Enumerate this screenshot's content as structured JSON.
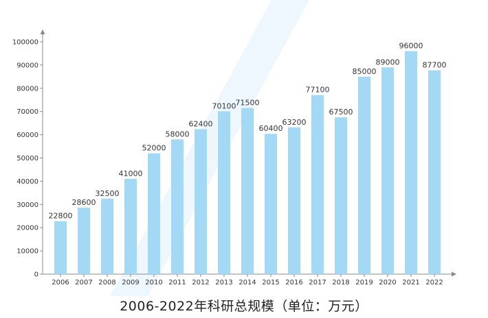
{
  "chart_data": {
    "type": "bar",
    "title": "2006-2022年科研总规模（单位：万元）",
    "categories": [
      "2006",
      "2007",
      "2008",
      "2009",
      "2010",
      "2011",
      "2012",
      "2013",
      "2014",
      "2015",
      "2016",
      "2017",
      "2018",
      "2019",
      "2020",
      "2021",
      "2022"
    ],
    "values": [
      22800,
      28600,
      32500,
      41000,
      52000,
      58000,
      62400,
      70100,
      71500,
      60400,
      63200,
      77100,
      67500,
      85000,
      89000,
      96000,
      87700
    ],
    "ylim": [
      0,
      100000
    ],
    "yticks": [
      0,
      10000,
      20000,
      30000,
      40000,
      50000,
      60000,
      70000,
      80000,
      90000,
      100000
    ],
    "xlabel": "",
    "ylabel": "",
    "grid": false,
    "bar_color": "#a3d9f5",
    "axis_color": "#888888"
  }
}
